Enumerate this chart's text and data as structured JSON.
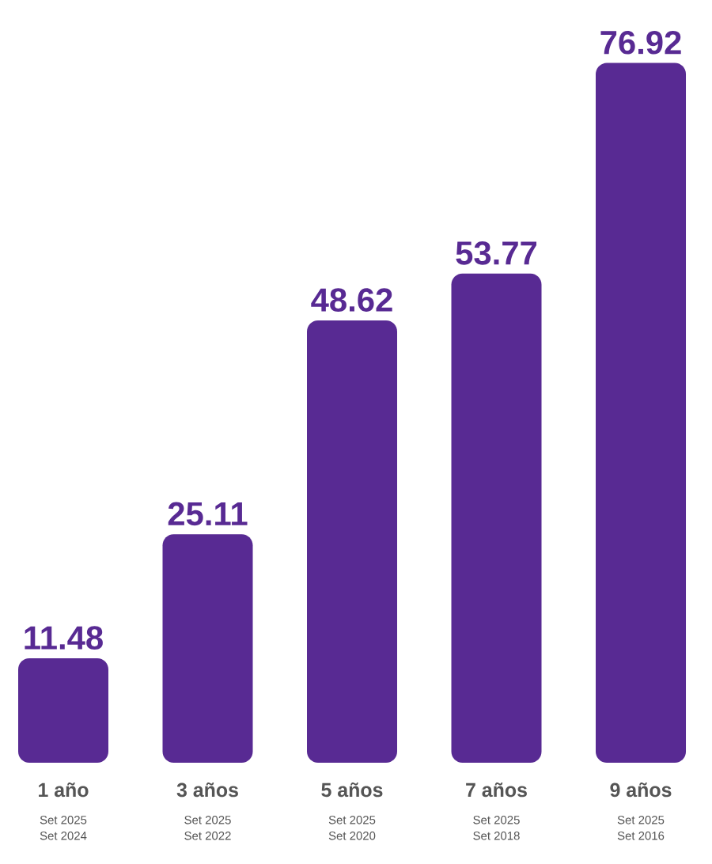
{
  "chart_data": {
    "type": "bar",
    "categories": [
      "1 año",
      "3 años",
      "5 años",
      "7 años",
      "9 años"
    ],
    "values": [
      11.48,
      25.11,
      48.62,
      53.77,
      76.92
    ],
    "color": "#582a93",
    "data_labels": true,
    "annotations": [
      "Set 2025",
      "Set 2024",
      "Set 2025",
      "Set 2022",
      "Set 2025",
      "Set 2020",
      "Set 2025",
      "Set 2018",
      "Set 2025",
      "Set 2016"
    ]
  }
}
